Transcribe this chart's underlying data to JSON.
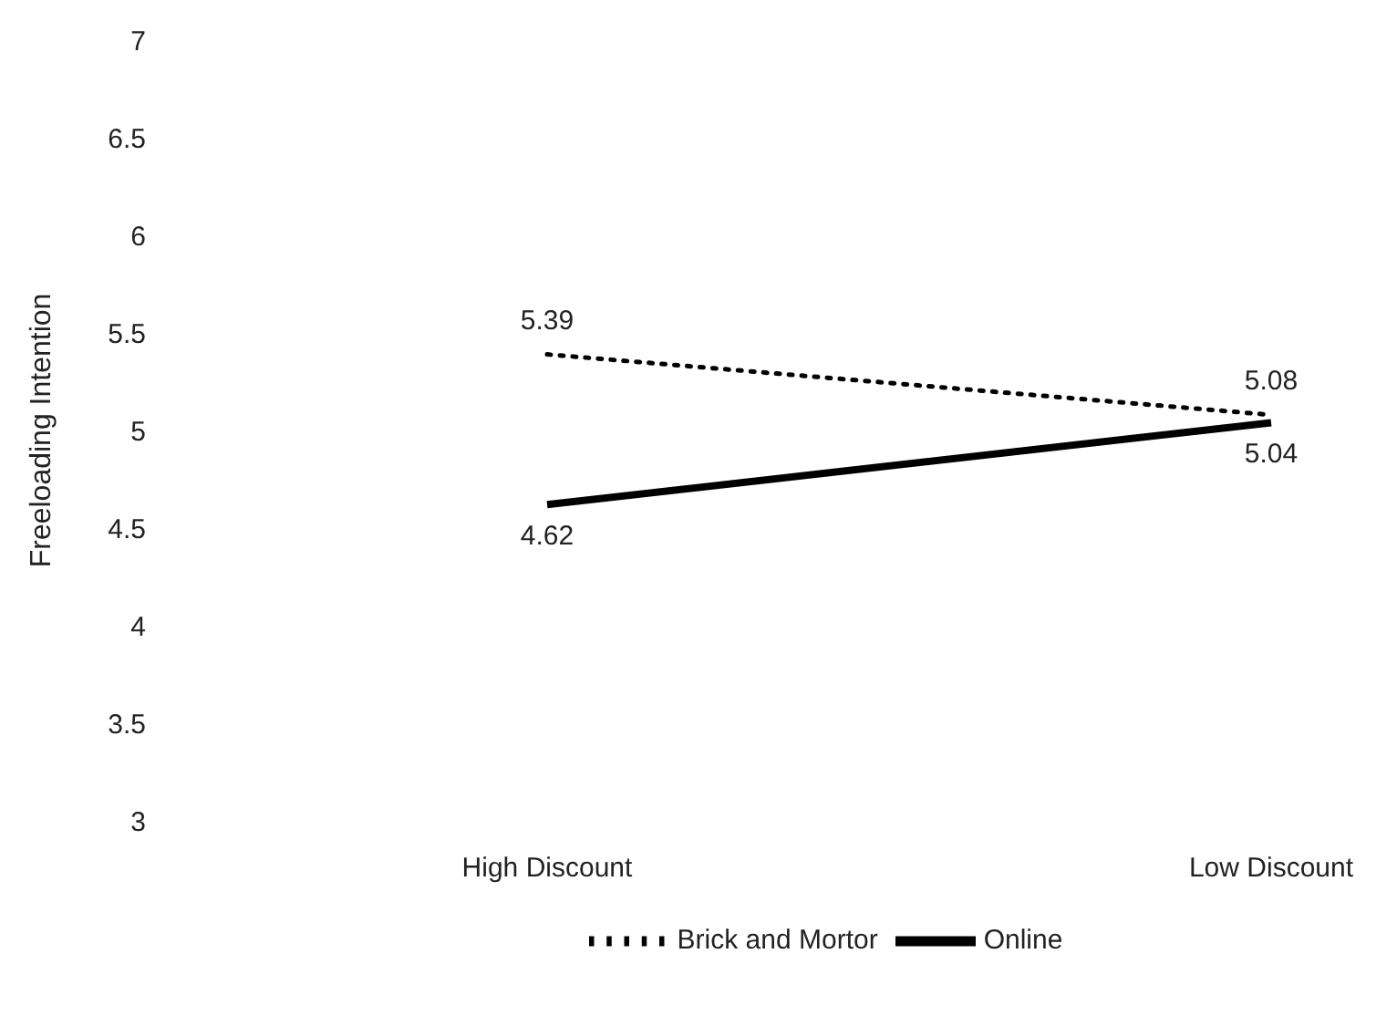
{
  "chart_data": {
    "type": "line",
    "ylabel": "Freeloading Intention",
    "categories": [
      "High Discount",
      "Low Discount"
    ],
    "series": [
      {
        "name": "Online",
        "color": "#000000",
        "values": [
          4.62,
          5.04
        ],
        "line_style": "solid"
      },
      {
        "name": "Brick and Mortor",
        "color": "#000000",
        "values": [
          5.39,
          5.08
        ],
        "line_style": "dotted"
      }
    ],
    "ylim": [
      3,
      7
    ],
    "yticks": [
      3,
      3.5,
      4,
      4.5,
      5,
      5.5,
      6,
      6.5,
      7
    ],
    "grid": false,
    "legend": "bottom",
    "marker": "none",
    "data_labels": true
  }
}
